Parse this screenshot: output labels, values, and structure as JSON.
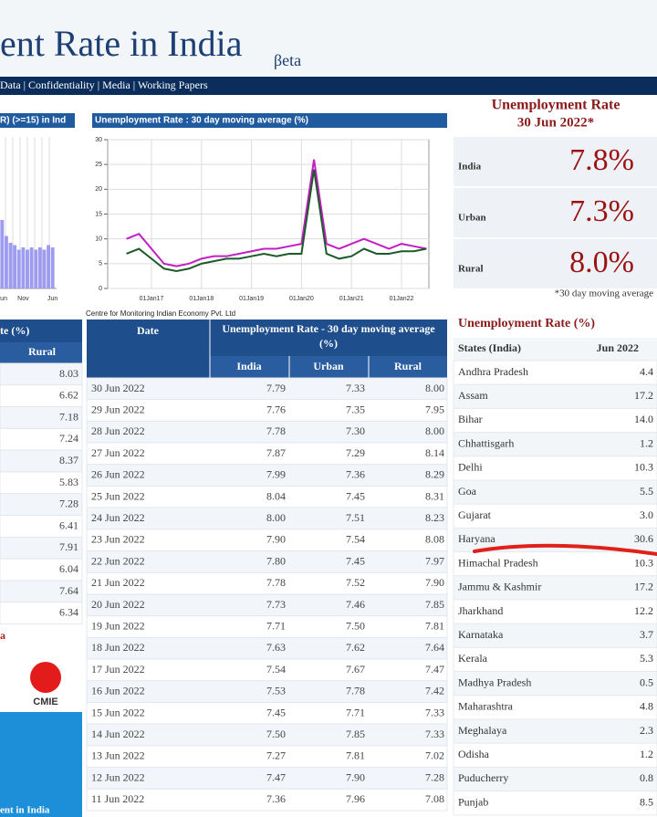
{
  "header": {
    "title": "ent Rate in India",
    "beta": "βeta",
    "nav": "Data | Confidentiality | Media | Working Papers"
  },
  "chart_data": [
    {
      "type": "bar",
      "title": "R) (>=15) in Ind",
      "color": "#9d9cf0",
      "categories": [
        "Jun",
        null,
        null,
        null,
        null,
        "Nov",
        null,
        null,
        null,
        null,
        null,
        null,
        "Jun"
      ],
      "values": [
        15,
        11.5,
        10,
        9.5,
        8.5,
        9,
        8.5,
        9,
        8.5,
        9,
        8.5,
        9.5,
        9
      ]
    },
    {
      "type": "line",
      "title": "Unemployment Rate : 30 day moving average (%)",
      "source": "Centre for Monitoring Indian Economy Pvt. Ltd",
      "categories": [
        null,
        null,
        "01Jan17",
        null,
        null,
        null,
        "01Jan18",
        null,
        null,
        null,
        "01Jan19",
        null,
        null,
        null,
        "01Jan20",
        null,
        null,
        null,
        "01Jan21",
        null,
        null,
        null,
        "01Jan22",
        null,
        null
      ],
      "ylim": [
        0,
        30
      ],
      "yticks": [
        0,
        5,
        10,
        15,
        20,
        25,
        30
      ],
      "grid": true,
      "series": [
        {
          "color": "#c21fc2",
          "values": [
            10,
            11,
            8,
            5,
            4.5,
            5,
            6,
            6.5,
            6.5,
            7,
            7.5,
            8,
            8,
            8.5,
            9,
            26,
            9,
            8,
            9,
            10,
            9,
            8,
            9,
            8.5,
            8
          ]
        },
        {
          "color": "#1d5a2a",
          "values": [
            7,
            8,
            6,
            4,
            3.5,
            4,
            5,
            5.5,
            6,
            6,
            6.5,
            7,
            6.5,
            7,
            7,
            24,
            7,
            6,
            6.5,
            8,
            7,
            7,
            7.5,
            7.5,
            8
          ]
        }
      ]
    }
  ],
  "left_table": {
    "header": "te (%)",
    "column": "Rural",
    "values": [
      "8.03",
      "6.62",
      "7.18",
      "7.24",
      "8.37",
      "5.83",
      "7.28",
      "6.41",
      "7.91",
      "6.04",
      "7.64",
      "6.34"
    ],
    "footer": "a"
  },
  "logo": {
    "text": "CMIE",
    "banner": "ent in India"
  },
  "daily_table": {
    "columns": [
      "Date",
      "Unemployment Rate - 30 day moving average (%)"
    ],
    "subcolumns": [
      "India",
      "Urban",
      "Rural"
    ],
    "rows": [
      [
        "30 Jun 2022",
        "7.79",
        "7.33",
        "8.00"
      ],
      [
        "29 Jun 2022",
        "7.76",
        "7.35",
        "7.95"
      ],
      [
        "28 Jun 2022",
        "7.78",
        "7.30",
        "8.00"
      ],
      [
        "27 Jun 2022",
        "7.87",
        "7.29",
        "8.14"
      ],
      [
        "26 Jun 2022",
        "7.99",
        "7.36",
        "8.29"
      ],
      [
        "25 Jun 2022",
        "8.04",
        "7.45",
        "8.31"
      ],
      [
        "24 Jun 2022",
        "8.00",
        "7.51",
        "8.23"
      ],
      [
        "23 Jun 2022",
        "7.90",
        "7.54",
        "8.08"
      ],
      [
        "22 Jun 2022",
        "7.80",
        "7.45",
        "7.97"
      ],
      [
        "21 Jun 2022",
        "7.78",
        "7.52",
        "7.90"
      ],
      [
        "20 Jun 2022",
        "7.73",
        "7.46",
        "7.85"
      ],
      [
        "19 Jun 2022",
        "7.71",
        "7.50",
        "7.81"
      ],
      [
        "18 Jun 2022",
        "7.63",
        "7.62",
        "7.64"
      ],
      [
        "17 Jun 2022",
        "7.54",
        "7.67",
        "7.47"
      ],
      [
        "16 Jun 2022",
        "7.53",
        "7.78",
        "7.42"
      ],
      [
        "15 Jun 2022",
        "7.45",
        "7.71",
        "7.33"
      ],
      [
        "14 Jun 2022",
        "7.50",
        "7.85",
        "7.33"
      ],
      [
        "13 Jun 2022",
        "7.27",
        "7.81",
        "7.02"
      ],
      [
        "12 Jun 2022",
        "7.47",
        "7.90",
        "7.28"
      ],
      [
        "11 Jun 2022",
        "7.36",
        "7.96",
        "7.08"
      ]
    ]
  },
  "summary": {
    "title": "Unemployment Rate",
    "date": "30 Jun 2022*",
    "rows": [
      [
        "India",
        "7.8%"
      ],
      [
        "Urban",
        "7.3%"
      ],
      [
        "Rural",
        "8.0%"
      ]
    ],
    "note": "*30 day moving average"
  },
  "states_table": {
    "title": "Unemployment Rate (%)",
    "columns": [
      "States (India)",
      "Jun 2022"
    ],
    "rows": [
      [
        "Andhra Pradesh",
        "4.4"
      ],
      [
        "Assam",
        "17.2"
      ],
      [
        "Bihar",
        "14.0"
      ],
      [
        "Chhattisgarh",
        "1.2"
      ],
      [
        "Delhi",
        "10.3"
      ],
      [
        "Goa",
        "5.5"
      ],
      [
        "Gujarat",
        "3.0"
      ],
      [
        "Haryana",
        "30.6"
      ],
      [
        "Himachal Pradesh",
        "10.3"
      ],
      [
        "Jammu & Kashmir",
        "17.2"
      ],
      [
        "Jharkhand",
        "12.2"
      ],
      [
        "Karnataka",
        "3.7"
      ],
      [
        "Kerala",
        "5.3"
      ],
      [
        "Madhya Pradesh",
        "0.5"
      ],
      [
        "Maharashtra",
        "4.8"
      ],
      [
        "Meghalaya",
        "2.3"
      ],
      [
        "Odisha",
        "1.2"
      ],
      [
        "Puducherry",
        "0.8"
      ],
      [
        "Punjab",
        "8.5"
      ]
    ]
  }
}
